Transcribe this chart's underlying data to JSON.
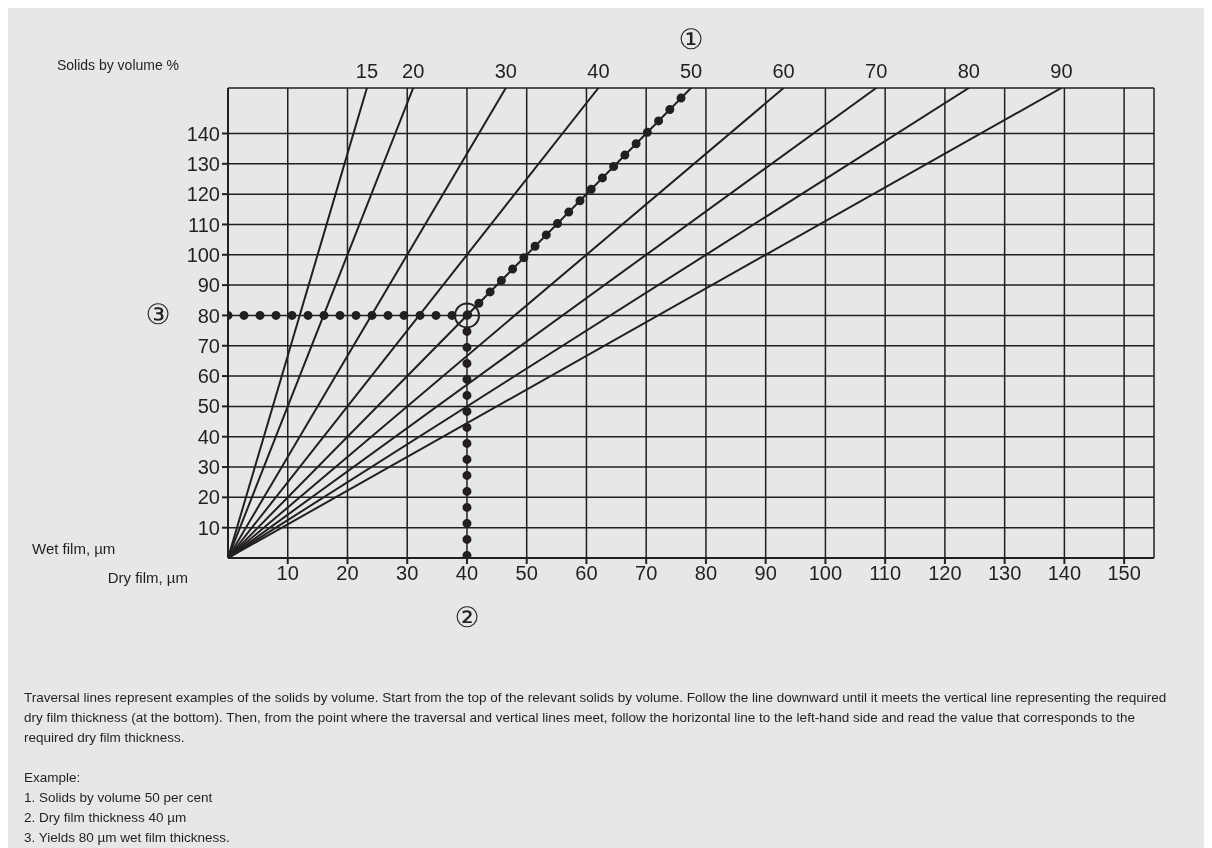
{
  "chart_data": {
    "type": "line",
    "xlabel": "Dry film, µm",
    "ylabel": "Wet film, µm",
    "legend_title": "Solids by volume %",
    "xlim": [
      0,
      155
    ],
    "ylim": [
      0,
      155
    ],
    "xticks": [
      10,
      20,
      30,
      40,
      50,
      60,
      70,
      80,
      90,
      100,
      110,
      120,
      130,
      140,
      150
    ],
    "yticks": [
      10,
      20,
      30,
      40,
      50,
      60,
      70,
      80,
      90,
      100,
      110,
      120,
      130,
      140
    ],
    "grid": true,
    "line_style": "solid",
    "marker": "none",
    "series": [
      {
        "name": "15",
        "color": "#231f20",
        "x": [
          0,
          23.25
        ],
        "values": [
          0,
          155
        ]
      },
      {
        "name": "20",
        "color": "#231f20",
        "x": [
          0,
          31
        ],
        "values": [
          0,
          155
        ]
      },
      {
        "name": "30",
        "color": "#231f20",
        "x": [
          0,
          46.5
        ],
        "values": [
          0,
          155
        ]
      },
      {
        "name": "40",
        "color": "#231f20",
        "x": [
          0,
          62
        ],
        "values": [
          0,
          155
        ]
      },
      {
        "name": "50",
        "color": "#231f20",
        "x": [
          0,
          77.5
        ],
        "values": [
          0,
          155
        ]
      },
      {
        "name": "60",
        "color": "#231f20",
        "x": [
          0,
          93
        ],
        "values": [
          0,
          155
        ]
      },
      {
        "name": "70",
        "color": "#231f20",
        "x": [
          0,
          108.5
        ],
        "values": [
          0,
          155
        ]
      },
      {
        "name": "80",
        "color": "#231f20",
        "x": [
          0,
          124
        ],
        "values": [
          0,
          155
        ]
      },
      {
        "name": "90",
        "color": "#231f20",
        "x": [
          0,
          139.5
        ],
        "values": [
          0,
          155
        ]
      },
      {
        "color": "#231f20",
        "line_style": "dotted",
        "x": [
          0,
          40,
          77.5
        ],
        "values": [
          80,
          80,
          155
        ]
      },
      {
        "color": "#231f20",
        "line_style": "dotted",
        "x": [
          40,
          40
        ],
        "values": [
          80,
          0
        ]
      },
      {
        "type": "scatter",
        "marker": "circle",
        "color": "#231f20",
        "x": [
          40
        ],
        "values": [
          80
        ]
      }
    ],
    "annotations": [
      {
        "text": "①",
        "x": 77.5,
        "y": 155
      },
      {
        "text": "②",
        "x": 40,
        "y": 0
      },
      {
        "text": "③",
        "x": 0,
        "y": 80
      },
      "Traversal lines represent examples of the solids by volume. Start from the top of the relevant solids by volume. Follow the line downward until it meets the vertical line representing the required dry film thickness (at the bottom). Then, from the point where the traversal and vertical lines meet, follow the horizontal line to the left-hand side and read the value that corresponds to the required dry film thickness.",
      "Example:",
      "1. Solids by volume 50 per cent",
      "2. Dry film thickness 40 µm",
      "3. Yields 80 µm wet film thickness."
    ]
  }
}
